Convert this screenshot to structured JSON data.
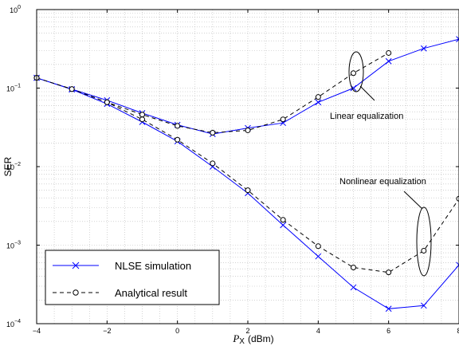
{
  "chart_data": {
    "type": "line",
    "title": "",
    "xlabel": "P",
    "xlabel_sub": "X",
    "xlabel_unit": "(dBm)",
    "ylabel": "SER",
    "xlim": [
      -4,
      8
    ],
    "ylim": [
      0.0001,
      1
    ],
    "yscale": "log",
    "grid": true,
    "x_ticks": [
      -4,
      -2,
      0,
      2,
      4,
      6,
      8
    ],
    "x_tick_labels": [
      "−4",
      "−2",
      "0",
      "2",
      "4",
      "6",
      "8"
    ],
    "y_ticks": [
      0.0001,
      0.001,
      0.01,
      0.1,
      1
    ],
    "y_tick_labels": [
      {
        "base": "10",
        "exp": "−4"
      },
      {
        "base": "10",
        "exp": "−3"
      },
      {
        "base": "10",
        "exp": "−2"
      },
      {
        "base": "10",
        "exp": "−1"
      },
      {
        "base": "10",
        "exp": "0"
      }
    ],
    "series": [
      {
        "name": "NLSE simulation",
        "style": "solid",
        "marker": "x",
        "color": "#0000ff",
        "x": [
          -4,
          -3,
          -2,
          -1,
          0,
          1,
          2,
          3,
          4,
          5,
          6,
          7,
          8
        ],
        "y": [
          0.135,
          0.097,
          0.07,
          0.048,
          0.034,
          0.026,
          0.031,
          0.036,
          0.066,
          0.1,
          0.22,
          0.32,
          0.42
        ]
      },
      {
        "name": "Analytical result",
        "style": "dashed",
        "marker": "o",
        "color": "#000000",
        "x": [
          -4,
          -3,
          -2,
          -1,
          0,
          1,
          2,
          3,
          4,
          5,
          6
        ],
        "y": [
          0.135,
          0.097,
          0.066,
          0.046,
          0.033,
          0.027,
          0.029,
          0.04,
          0.077,
          0.155,
          0.28
        ]
      },
      {
        "name": "NLSE simulation",
        "style": "solid",
        "marker": "x",
        "color": "#0000ff",
        "x": [
          -4,
          -3,
          -2,
          -1,
          0,
          1,
          2,
          3,
          4,
          5,
          6,
          7,
          8
        ],
        "y": [
          0.135,
          0.096,
          0.063,
          0.037,
          0.021,
          0.01,
          0.0046,
          0.0018,
          0.00072,
          0.00029,
          0.000155,
          0.00017,
          0.00056
        ]
      },
      {
        "name": "Analytical result",
        "style": "dashed",
        "marker": "o",
        "color": "#000000",
        "x": [
          -4,
          -3,
          -2,
          -1,
          0,
          1,
          2,
          3,
          4,
          5,
          6,
          7,
          8
        ],
        "y": [
          0.135,
          0.097,
          0.066,
          0.04,
          0.022,
          0.011,
          0.005,
          0.0021,
          0.00097,
          0.00052,
          0.00045,
          0.00085,
          0.0039
        ]
      }
    ],
    "annotations": [
      {
        "text": "Linear equalization"
      },
      {
        "text": "Nonlinear equalization"
      }
    ],
    "legend": {
      "placement": "bottom-left",
      "entries": [
        {
          "label": "NLSE simulation",
          "marker": "x",
          "style": "solid",
          "color": "#0000ff"
        },
        {
          "label": "Analytical result",
          "marker": "o",
          "style": "dashed",
          "color": "#000000"
        }
      ]
    }
  }
}
